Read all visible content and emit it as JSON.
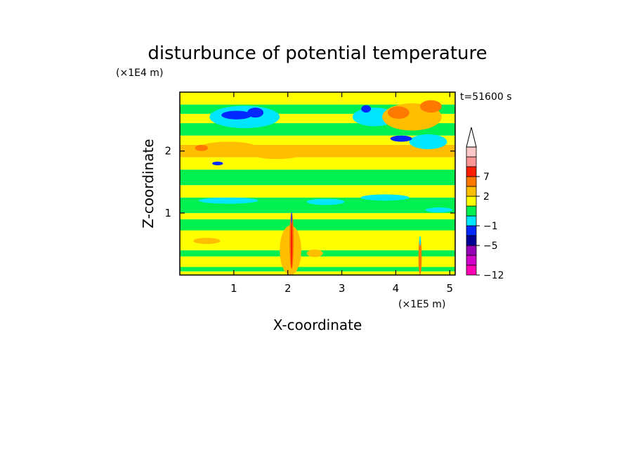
{
  "chart_data": {
    "type": "heatmap",
    "title": "disturbunce of potential temperature",
    "xlabel": "X-coordinate",
    "ylabel": "Z-coordinate",
    "x_unit": "(×1E5 m)",
    "y_unit": "(×1E4 m)",
    "time_label": "t=51600 s",
    "xlim": [
      0,
      5.1
    ],
    "ylim": [
      0,
      2.95
    ],
    "x_ticks": [
      1,
      2,
      3,
      4,
      5
    ],
    "y_ticks": [
      1,
      2
    ],
    "colorbar": {
      "levels": [
        {
          "value": -12,
          "color": "#ff00b4"
        },
        {
          "value": -10,
          "color": "#d200c8"
        },
        {
          "value": -8,
          "color": "#9600b4"
        },
        {
          "value": -5,
          "color": "#000096"
        },
        {
          "value": -3,
          "color": "#0028ff"
        },
        {
          "value": -1,
          "color": "#00e6ff"
        },
        {
          "value": 0,
          "color": "#00f050"
        },
        {
          "value": 1,
          "color": "#ffff00"
        },
        {
          "value": 2,
          "color": "#ffbe00"
        },
        {
          "value": 4,
          "color": "#ff7800"
        },
        {
          "value": 7,
          "color": "#ff1e00"
        },
        {
          "value": 10,
          "color": "#ff9696"
        },
        {
          "value": 14,
          "color": "#ffc8c8"
        }
      ],
      "labeled_ticks": [
        -12,
        -5,
        -1,
        2,
        7
      ],
      "extend": "max"
    },
    "bands": [
      {
        "z": [
          0.0,
          0.06
        ],
        "value": 1
      },
      {
        "z": [
          0.06,
          0.13
        ],
        "value": 0
      },
      {
        "z": [
          0.13,
          0.3
        ],
        "value": 1
      },
      {
        "z": [
          0.3,
          0.4
        ],
        "value": 0
      },
      {
        "z": [
          0.4,
          0.72
        ],
        "value": 1
      },
      {
        "z": [
          0.72,
          0.9
        ],
        "value": 0
      },
      {
        "z": [
          0.9,
          1.0
        ],
        "value": 1
      },
      {
        "z": [
          1.0,
          1.25
        ],
        "value": 0
      },
      {
        "z": [
          1.25,
          1.45
        ],
        "value": 1
      },
      {
        "z": [
          1.45,
          1.7
        ],
        "value": 0
      },
      {
        "z": [
          1.7,
          1.9
        ],
        "value": 1
      },
      {
        "z": [
          1.9,
          2.1
        ],
        "value": 2
      },
      {
        "z": [
          2.1,
          2.25
        ],
        "value": 1
      },
      {
        "z": [
          2.25,
          2.45
        ],
        "value": 0
      },
      {
        "z": [
          2.45,
          2.6
        ],
        "value": 1
      },
      {
        "z": [
          2.6,
          2.75
        ],
        "value": 0
      },
      {
        "z": [
          2.75,
          2.95
        ],
        "value": 1
      }
    ],
    "features": [
      {
        "x": 0.9,
        "z": 1.2,
        "rx": 0.55,
        "rz": 0.05,
        "value": -1
      },
      {
        "x": 2.7,
        "z": 1.18,
        "rx": 0.35,
        "rz": 0.05,
        "value": -1
      },
      {
        "x": 3.8,
        "z": 1.25,
        "rx": 0.45,
        "rz": 0.05,
        "value": -1
      },
      {
        "x": 4.8,
        "z": 1.05,
        "rx": 0.25,
        "rz": 0.04,
        "value": -1
      },
      {
        "x": 1.2,
        "z": 2.55,
        "rx": 0.65,
        "rz": 0.18,
        "value": -1
      },
      {
        "x": 3.6,
        "z": 2.55,
        "rx": 0.4,
        "rz": 0.15,
        "value": -1
      },
      {
        "x": 4.6,
        "z": 2.15,
        "rx": 0.35,
        "rz": 0.12,
        "value": -1
      },
      {
        "x": 1.05,
        "z": 2.58,
        "rx": 0.28,
        "rz": 0.07,
        "value": -3
      },
      {
        "x": 1.4,
        "z": 2.62,
        "rx": 0.15,
        "rz": 0.08,
        "value": -3
      },
      {
        "x": 3.45,
        "z": 2.68,
        "rx": 0.09,
        "rz": 0.06,
        "value": -3
      },
      {
        "x": 0.7,
        "z": 1.8,
        "rx": 0.1,
        "rz": 0.03,
        "value": -3
      },
      {
        "x": 4.1,
        "z": 2.2,
        "rx": 0.2,
        "rz": 0.05,
        "value": -3
      },
      {
        "x": 4.3,
        "z": 2.55,
        "rx": 0.55,
        "rz": 0.22,
        "value": 2
      },
      {
        "x": 0.9,
        "z": 2.05,
        "rx": 0.55,
        "rz": 0.1,
        "value": 2
      },
      {
        "x": 1.8,
        "z": 1.95,
        "rx": 0.45,
        "rz": 0.08,
        "value": 2
      },
      {
        "x": 4.05,
        "z": 2.62,
        "rx": 0.2,
        "rz": 0.1,
        "value": 4
      },
      {
        "x": 4.65,
        "z": 2.72,
        "rx": 0.2,
        "rz": 0.1,
        "value": 4
      },
      {
        "x": 0.4,
        "z": 2.05,
        "rx": 0.12,
        "rz": 0.05,
        "value": 4
      },
      {
        "x": 2.05,
        "z": 0.4,
        "rx": 0.2,
        "rz": 0.4,
        "value": 2
      },
      {
        "x": 2.07,
        "z": 0.55,
        "rx": 0.04,
        "rz": 0.45,
        "value": 4
      },
      {
        "x": 2.07,
        "z": 0.5,
        "rx": 0.015,
        "rz": 0.4,
        "value": 7
      },
      {
        "x": 2.07,
        "z": 0.92,
        "rx": 0.01,
        "rz": 0.1,
        "value": -3
      },
      {
        "x": 4.45,
        "z": 0.3,
        "rx": 0.03,
        "rz": 0.3,
        "value": 4
      },
      {
        "x": 4.45,
        "z": 0.55,
        "rx": 0.015,
        "rz": 0.08,
        "value": -1
      },
      {
        "x": 2.5,
        "z": 0.35,
        "rx": 0.15,
        "rz": 0.06,
        "value": 2
      },
      {
        "x": 0.5,
        "z": 0.55,
        "rx": 0.25,
        "rz": 0.05,
        "value": 2
      }
    ]
  }
}
